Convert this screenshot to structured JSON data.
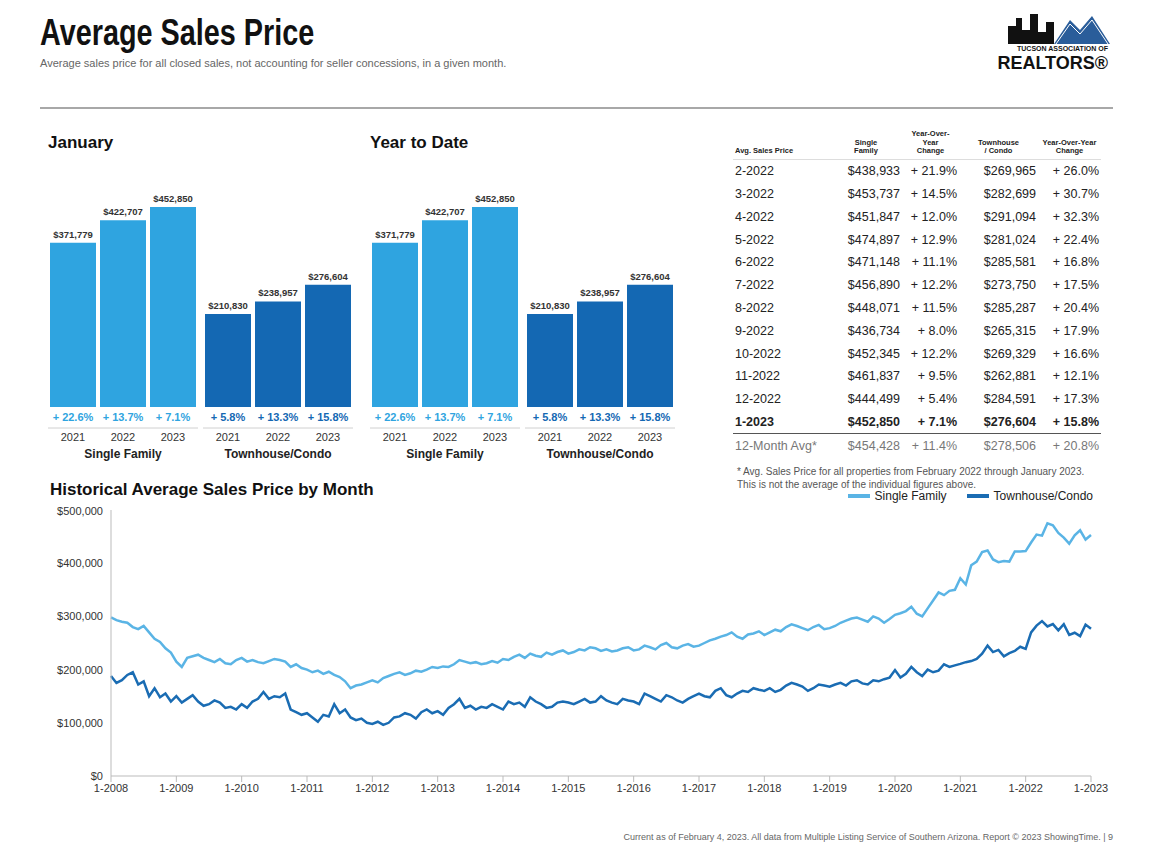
{
  "header": {
    "title": "Average Sales Price",
    "subtitle": "Average sales price for all closed sales, not accounting for seller concessions, in a given month.",
    "logo": [
      "TUCSON ASSOCIATION OF",
      "REALTORS®"
    ]
  },
  "chart_data": [
    {
      "type": "bar",
      "title": "January",
      "categories": [
        "2021",
        "2022",
        "2023"
      ],
      "ylim": [
        0,
        480000
      ],
      "tick_labels": "x",
      "data_labels": true,
      "series": [
        {
          "name": "Single Family",
          "color": "#2fa4e0",
          "values": [
            371779,
            422707,
            452850
          ],
          "value_labels": [
            "$371,779",
            "$422,707",
            "$452,850"
          ],
          "change_labels": [
            "+ 22.6%",
            "+ 13.7%",
            "+ 7.1%"
          ]
        },
        {
          "name": "Townhouse/Condo",
          "color": "#1468b3",
          "values": [
            210830,
            238957,
            276604
          ],
          "value_labels": [
            "$210,830",
            "$238,957",
            "$276,604"
          ],
          "change_labels": [
            "+ 5.8%",
            "+ 13.3%",
            "+ 15.8%"
          ]
        }
      ]
    },
    {
      "type": "bar",
      "title": "Year to Date",
      "categories": [
        "2021",
        "2022",
        "2023"
      ],
      "ylim": [
        0,
        480000
      ],
      "tick_labels": "x",
      "data_labels": true,
      "series": [
        {
          "name": "Single Family",
          "color": "#2fa4e0",
          "values": [
            371779,
            422707,
            452850
          ],
          "value_labels": [
            "$371,779",
            "$422,707",
            "$452,850"
          ],
          "change_labels": [
            "+ 22.6%",
            "+ 13.7%",
            "+ 7.1%"
          ]
        },
        {
          "name": "Townhouse/Condo",
          "color": "#1468b3",
          "values": [
            210830,
            238957,
            276604
          ],
          "value_labels": [
            "$210,830",
            "$238,957",
            "$276,604"
          ],
          "change_labels": [
            "+ 5.8%",
            "+ 13.3%",
            "+ 15.8%"
          ]
        }
      ]
    },
    {
      "type": "line",
      "title": "Historical Average Sales Price by Month",
      "legend": "top-right",
      "grid": false,
      "ylim": [
        0,
        500000
      ],
      "yticks": [
        {
          "value": 0,
          "label": "$0"
        },
        {
          "value": 100000,
          "label": "$100,000"
        },
        {
          "value": 200000,
          "label": "$200,000"
        },
        {
          "value": 300000,
          "label": "$300,000"
        },
        {
          "value": 400000,
          "label": "$400,000"
        },
        {
          "value": 500000,
          "label": "$500,000"
        }
      ],
      "categories": [
        "1-2008",
        null,
        null,
        null,
        null,
        null,
        null,
        null,
        null,
        null,
        null,
        null,
        "1-2009",
        null,
        null,
        null,
        null,
        null,
        null,
        null,
        null,
        null,
        null,
        null,
        "1-2010",
        null,
        null,
        null,
        null,
        null,
        null,
        null,
        null,
        null,
        null,
        null,
        "1-2011",
        null,
        null,
        null,
        null,
        null,
        null,
        null,
        null,
        null,
        null,
        null,
        "1-2012",
        null,
        null,
        null,
        null,
        null,
        null,
        null,
        null,
        null,
        null,
        null,
        "1-2013",
        null,
        null,
        null,
        null,
        null,
        null,
        null,
        null,
        null,
        null,
        null,
        "1-2014",
        null,
        null,
        null,
        null,
        null,
        null,
        null,
        null,
        null,
        null,
        null,
        "1-2015",
        null,
        null,
        null,
        null,
        null,
        null,
        null,
        null,
        null,
        null,
        null,
        "1-2016",
        null,
        null,
        null,
        null,
        null,
        null,
        null,
        null,
        null,
        null,
        null,
        "1-2017",
        null,
        null,
        null,
        null,
        null,
        null,
        null,
        null,
        null,
        null,
        null,
        "1-2018",
        null,
        null,
        null,
        null,
        null,
        null,
        null,
        null,
        null,
        null,
        null,
        "1-2019",
        null,
        null,
        null,
        null,
        null,
        null,
        null,
        null,
        null,
        null,
        null,
        "1-2020",
        null,
        null,
        null,
        null,
        null,
        null,
        null,
        null,
        null,
        null,
        null,
        "1-2021",
        null,
        null,
        null,
        null,
        null,
        null,
        null,
        null,
        null,
        null,
        null,
        "1-2022",
        null,
        null,
        null,
        null,
        null,
        null,
        null,
        null,
        null,
        null,
        null,
        "1-2023"
      ],
      "series": [
        {
          "name": "Single Family",
          "color": "#5ab4e5",
          "values": [
            298000,
            293000,
            290000,
            288000,
            280000,
            276000,
            282000,
            270000,
            258000,
            252000,
            240000,
            232000,
            215000,
            205000,
            222000,
            225000,
            228000,
            222000,
            218000,
            214000,
            220000,
            212000,
            210000,
            218000,
            222000,
            215000,
            218000,
            214000,
            212000,
            216000,
            220000,
            218000,
            215000,
            205000,
            210000,
            203000,
            200000,
            195000,
            198000,
            192000,
            196000,
            190000,
            186000,
            178000,
            165000,
            170000,
            172000,
            176000,
            180000,
            176000,
            184000,
            188000,
            192000,
            195000,
            190000,
            193000,
            198000,
            196000,
            200000,
            205000,
            203000,
            206000,
            205000,
            210000,
            218000,
            215000,
            212000,
            214000,
            210000,
            212000,
            216000,
            213000,
            220000,
            218000,
            224000,
            228000,
            222000,
            230000,
            226000,
            224000,
            232000,
            228000,
            233000,
            236000,
            230000,
            233000,
            238000,
            236000,
            242000,
            240000,
            235000,
            238000,
            234000,
            236000,
            240000,
            242000,
            236000,
            238000,
            245000,
            242000,
            238000,
            246000,
            250000,
            242000,
            240000,
            245000,
            248000,
            243000,
            245000,
            250000,
            255000,
            258000,
            262000,
            265000,
            270000,
            262000,
            258000,
            266000,
            268000,
            272000,
            265000,
            270000,
            275000,
            272000,
            280000,
            285000,
            282000,
            278000,
            274000,
            280000,
            284000,
            276000,
            278000,
            282000,
            288000,
            292000,
            296000,
            298000,
            294000,
            290000,
            300000,
            296000,
            288000,
            295000,
            303000,
            306000,
            310000,
            318000,
            305000,
            300000,
            315000,
            330000,
            345000,
            340000,
            348000,
            350000,
            371779,
            360000,
            396000,
            403000,
            421000,
            424000,
            407000,
            402000,
            404000,
            403000,
            422000,
            422000,
            422707,
            438933,
            453737,
            451847,
            474897,
            471148,
            456890,
            448071,
            436734,
            452345,
            461837,
            444499,
            452850
          ]
        },
        {
          "name": "Townhouse/Condo",
          "color": "#1a6cb3",
          "values": [
            188000,
            175000,
            180000,
            190000,
            195000,
            172000,
            178000,
            150000,
            165000,
            148000,
            155000,
            140000,
            150000,
            138000,
            145000,
            152000,
            140000,
            132000,
            135000,
            142000,
            138000,
            128000,
            130000,
            125000,
            135000,
            128000,
            140000,
            145000,
            158000,
            145000,
            150000,
            148000,
            155000,
            125000,
            120000,
            115000,
            118000,
            110000,
            102000,
            115000,
            112000,
            135000,
            118000,
            125000,
            110000,
            105000,
            108000,
            100000,
            98000,
            102000,
            96000,
            100000,
            110000,
            112000,
            118000,
            115000,
            108000,
            120000,
            125000,
            118000,
            122000,
            115000,
            128000,
            135000,
            145000,
            128000,
            132000,
            125000,
            130000,
            128000,
            135000,
            130000,
            125000,
            140000,
            135000,
            138000,
            130000,
            148000,
            140000,
            135000,
            128000,
            130000,
            138000,
            140000,
            138000,
            135000,
            140000,
            145000,
            138000,
            140000,
            150000,
            142000,
            138000,
            135000,
            145000,
            142000,
            140000,
            135000,
            155000,
            150000,
            145000,
            140000,
            152000,
            148000,
            142000,
            138000,
            145000,
            150000,
            155000,
            150000,
            148000,
            160000,
            165000,
            152000,
            148000,
            155000,
            160000,
            158000,
            165000,
            162000,
            160000,
            165000,
            158000,
            162000,
            170000,
            175000,
            172000,
            168000,
            160000,
            165000,
            172000,
            170000,
            168000,
            172000,
            175000,
            170000,
            178000,
            180000,
            174000,
            172000,
            180000,
            178000,
            182000,
            185000,
            199000,
            185000,
            192000,
            205000,
            195000,
            188000,
            200000,
            195000,
            198000,
            210000,
            205000,
            208000,
            210830,
            214000,
            216000,
            220000,
            230000,
            245000,
            233000,
            237000,
            225000,
            231000,
            235000,
            243000,
            238957,
            269965,
            282699,
            291094,
            281024,
            285581,
            273750,
            285287,
            265315,
            269329,
            262881,
            284591,
            276604
          ]
        }
      ]
    }
  ],
  "table": {
    "header": [
      [
        "Avg. Sales Price"
      ],
      [
        "Single",
        "Family"
      ],
      [
        "Year-Over-Year",
        "Change"
      ],
      [
        "Townhouse",
        "/ Condo"
      ],
      [
        "Year-Over-Year",
        "Change"
      ]
    ],
    "rows": [
      [
        "2-2022",
        "$438,933",
        "+ 21.9%",
        "$269,965",
        "+ 26.0%"
      ],
      [
        "3-2022",
        "$453,737",
        "+ 14.5%",
        "$282,699",
        "+ 30.7%"
      ],
      [
        "4-2022",
        "$451,847",
        "+ 12.0%",
        "$291,094",
        "+ 32.3%"
      ],
      [
        "5-2022",
        "$474,897",
        "+ 12.9%",
        "$281,024",
        "+ 22.4%"
      ],
      [
        "6-2022",
        "$471,148",
        "+ 11.1%",
        "$285,581",
        "+ 16.8%"
      ],
      [
        "7-2022",
        "$456,890",
        "+ 12.2%",
        "$273,750",
        "+ 17.5%"
      ],
      [
        "8-2022",
        "$448,071",
        "+ 11.5%",
        "$285,287",
        "+ 20.4%"
      ],
      [
        "9-2022",
        "$436,734",
        "+ 8.0%",
        "$265,315",
        "+ 17.9%"
      ],
      [
        "10-2022",
        "$452,345",
        "+ 12.2%",
        "$269,329",
        "+ 16.6%"
      ],
      [
        "11-2022",
        "$461,837",
        "+ 9.5%",
        "$262,881",
        "+ 12.1%"
      ],
      [
        "12-2022",
        "$444,499",
        "+ 5.4%",
        "$284,591",
        "+ 17.3%"
      ],
      [
        "1-2023",
        "$452,850",
        "+ 7.1%",
        "$276,604",
        "+ 15.8%"
      ]
    ],
    "summary": [
      "12-Month Avg*",
      "$454,428",
      "+ 11.4%",
      "$278,506",
      "+ 20.8%"
    ],
    "footnote": [
      "* Avg. Sales Price for all properties from February 2022 through January 2023.",
      "This is not the average of the individual figures above."
    ]
  },
  "footer": "Current as of February 4, 2023. All data from Multiple Listing Service of Southern Arizona. Report © 2023 ShowingTime. | 9"
}
